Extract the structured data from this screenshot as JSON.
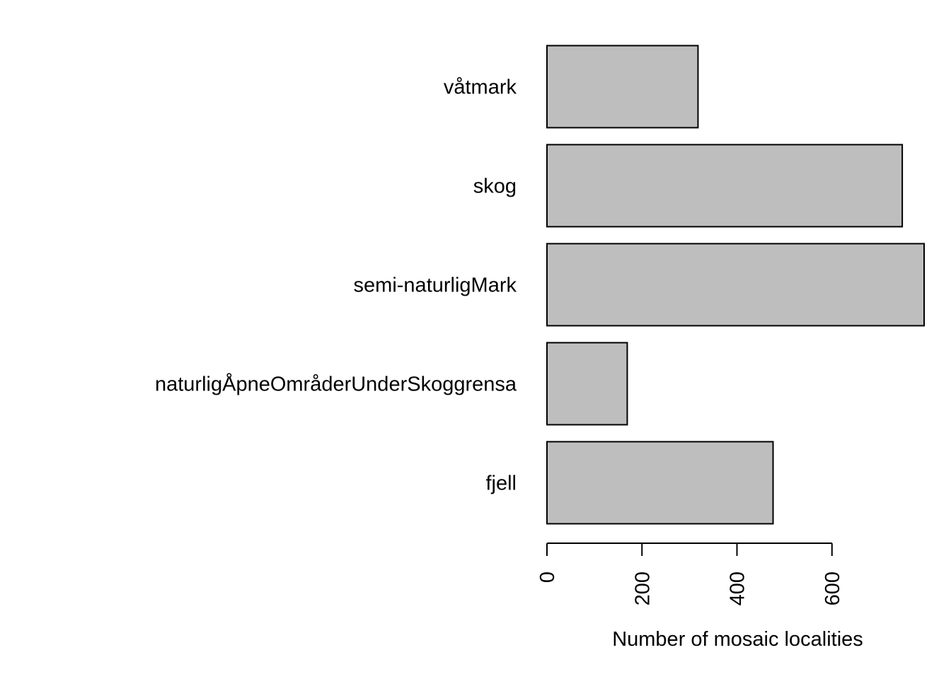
{
  "chart_data": {
    "type": "bar",
    "orientation": "horizontal",
    "title": "",
    "xlabel": "Number of mosaic localities",
    "ylabel": "",
    "categories": [
      "fjell",
      "naturligÅpneOmråderUnderSkoggrensa",
      "semi-naturligMark",
      "skog",
      "våtmark"
    ],
    "values": [
      476,
      169,
      794,
      748,
      318
    ],
    "xlim": [
      0,
      794
    ],
    "xticks": [
      0,
      200,
      400,
      600
    ],
    "grid": false,
    "legend": "none",
    "bar_color": "#bebebe",
    "bar_edge_color": "#000000"
  }
}
